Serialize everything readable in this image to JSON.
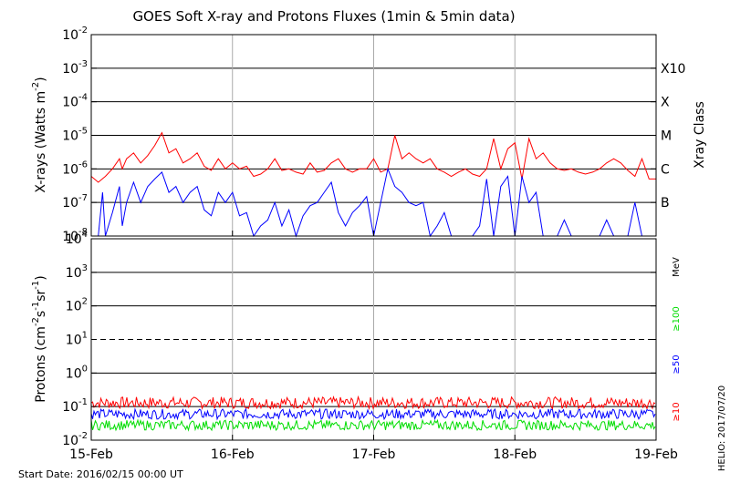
{
  "chart_data": [
    {
      "type": "line",
      "title": "GOES Soft X-ray and Protons Fluxes   (1min & 5min data)",
      "ylabel": {
        "prefix": "X-rays (Watts m",
        "exp": "-2",
        "suffix": ")"
      },
      "yscale": "log",
      "ylim": [
        1e-08,
        0.01
      ],
      "y_ticks": [
        {
          "mant": "10",
          "exp": "-2"
        },
        {
          "mant": "10",
          "exp": "-3"
        },
        {
          "mant": "10",
          "exp": "-4"
        },
        {
          "mant": "10",
          "exp": "-5"
        },
        {
          "mant": "10",
          "exp": "-6"
        },
        {
          "mant": "10",
          "exp": "-7"
        },
        {
          "mant": "10",
          "exp": "-8"
        }
      ],
      "right_axis_label": "Xray Class",
      "classes": [
        "X10",
        "X",
        "M",
        "C",
        "B"
      ],
      "grid": true,
      "series": [
        {
          "color": "#ff0000",
          "x": [
            0,
            0.05,
            0.1,
            0.15,
            0.2,
            0.22,
            0.25,
            0.3,
            0.35,
            0.4,
            0.45,
            0.5,
            0.55,
            0.6,
            0.65,
            0.7,
            0.75,
            0.8,
            0.85,
            0.9,
            0.95,
            1.0,
            1.05,
            1.1,
            1.15,
            1.2,
            1.25,
            1.3,
            1.35,
            1.4,
            1.45,
            1.5,
            1.55,
            1.6,
            1.65,
            1.7,
            1.75,
            1.8,
            1.85,
            1.9,
            1.95,
            2.0,
            2.05,
            2.1,
            2.15,
            2.2,
            2.25,
            2.3,
            2.35,
            2.4,
            2.45,
            2.5,
            2.55,
            2.6,
            2.65,
            2.7,
            2.75,
            2.8,
            2.85,
            2.9,
            2.95,
            3.0,
            3.05,
            3.1,
            3.15,
            3.2,
            3.25,
            3.3,
            3.35,
            3.4,
            3.45,
            3.5,
            3.55,
            3.6,
            3.65,
            3.7,
            3.75,
            3.8,
            3.85,
            3.9,
            3.95,
            4.0
          ],
          "y": [
            6e-07,
            4e-07,
            6e-07,
            1e-06,
            2e-06,
            1e-06,
            2e-06,
            3e-06,
            1.5e-06,
            2.5e-06,
            5e-06,
            1.2e-05,
            3e-06,
            4e-06,
            1.5e-06,
            2e-06,
            3e-06,
            1.2e-06,
            9e-07,
            2e-06,
            1e-06,
            1.5e-06,
            1e-06,
            1.2e-06,
            6e-07,
            7e-07,
            1e-06,
            2e-06,
            9e-07,
            1e-06,
            8e-07,
            7e-07,
            1.5e-06,
            8e-07,
            9e-07,
            1.5e-06,
            2e-06,
            1e-06,
            8e-07,
            1e-06,
            1e-06,
            2e-06,
            8e-07,
            1e-06,
            1e-05,
            2e-06,
            3e-06,
            2e-06,
            1.5e-06,
            2e-06,
            1e-06,
            8e-07,
            6e-07,
            8e-07,
            1e-06,
            7e-07,
            6e-07,
            1e-06,
            8e-06,
            1e-06,
            4e-06,
            6e-06,
            5e-07,
            8e-06,
            2e-06,
            3e-06,
            1.5e-06,
            1e-06,
            9e-07,
            1e-06,
            8e-07,
            7e-07,
            8e-07,
            1e-06,
            1.5e-06,
            2e-06,
            1.5e-06,
            9e-07,
            6e-07,
            2e-06,
            5e-07,
            5e-07
          ]
        },
        {
          "color": "#0000ff",
          "x": [
            0,
            0.05,
            0.08,
            0.1,
            0.15,
            0.2,
            0.22,
            0.25,
            0.3,
            0.35,
            0.4,
            0.45,
            0.5,
            0.55,
            0.6,
            0.65,
            0.7,
            0.75,
            0.8,
            0.85,
            0.9,
            0.95,
            1.0,
            1.05,
            1.1,
            1.15,
            1.2,
            1.25,
            1.3,
            1.35,
            1.4,
            1.45,
            1.5,
            1.55,
            1.6,
            1.65,
            1.7,
            1.75,
            1.8,
            1.85,
            1.9,
            1.95,
            2.0,
            2.05,
            2.1,
            2.15,
            2.2,
            2.25,
            2.3,
            2.35,
            2.4,
            2.45,
            2.5,
            2.55,
            2.6,
            2.65,
            2.7,
            2.75,
            2.8,
            2.85,
            2.9,
            2.95,
            3.0,
            3.05,
            3.1,
            3.15,
            3.2,
            3.25,
            3.3,
            3.35,
            3.4,
            3.45,
            3.5,
            3.55,
            3.6,
            3.65,
            3.7,
            3.75,
            3.8,
            3.85,
            3.9,
            3.95,
            4.0
          ],
          "y": [
            1e-08,
            1e-08,
            2e-07,
            1e-08,
            5e-08,
            3e-07,
            2e-08,
            1e-07,
            4e-07,
            1e-07,
            3e-07,
            5e-07,
            8e-07,
            2e-07,
            3e-07,
            1e-07,
            2e-07,
            3e-07,
            6e-08,
            4e-08,
            2e-07,
            1e-07,
            2e-07,
            4e-08,
            5e-08,
            1e-08,
            2e-08,
            3e-08,
            1e-07,
            2e-08,
            6e-08,
            1e-08,
            4e-08,
            8e-08,
            1e-07,
            2e-07,
            4e-07,
            5e-08,
            2e-08,
            5e-08,
            8e-08,
            1.5e-07,
            1e-08,
            1e-07,
            1e-06,
            3e-07,
            2e-07,
            1e-07,
            8e-08,
            1e-07,
            1e-08,
            2e-08,
            5e-08,
            1e-08,
            1e-08,
            1e-08,
            1e-08,
            2e-08,
            5e-07,
            1e-08,
            3e-07,
            6e-07,
            1e-08,
            6e-07,
            1e-07,
            2e-07,
            1e-08,
            1e-08,
            1e-08,
            3e-08,
            1e-08,
            1e-08,
            1e-08,
            1e-08,
            1e-08,
            3e-08,
            1e-08,
            1e-08,
            1e-08,
            1e-07,
            1e-08,
            1e-08,
            1e-08
          ]
        }
      ]
    },
    {
      "type": "line",
      "ylabel": {
        "prefix": "Protons (cm",
        "e1": "-2",
        "mid1": "s",
        "e2": "-1",
        "mid2": "sr",
        "e3": "-1",
        "suffix": ")"
      },
      "yscale": "log",
      "ylim": [
        0.01,
        10000
      ],
      "y_ticks": [
        {
          "mant": "10",
          "exp": "4"
        },
        {
          "mant": "10",
          "exp": "3"
        },
        {
          "mant": "10",
          "exp": "2"
        },
        {
          "mant": "10",
          "exp": "1"
        },
        {
          "mant": "10",
          "exp": "0"
        },
        {
          "mant": "10",
          "exp": "-1"
        },
        {
          "mant": "10",
          "exp": "-2"
        }
      ],
      "threshold": 10,
      "right_axis_label": "MeV",
      "energy_labels": [
        {
          "text": "≥100",
          "color": "#00dd00"
        },
        {
          "text": "≥50",
          "color": "#0000ff"
        },
        {
          "text": "≥10",
          "color": "#ff0000"
        }
      ],
      "series": [
        {
          "color": "#ff0000",
          "level": 0.13,
          "spread": 0.35
        },
        {
          "color": "#0000ff",
          "level": 0.06,
          "spread": 0.3
        },
        {
          "color": "#00dd00",
          "level": 0.028,
          "spread": 0.3
        }
      ]
    }
  ],
  "x_axis": {
    "tick_labels": [
      "15-Feb",
      "16-Feb",
      "17-Feb",
      "18-Feb",
      "19-Feb"
    ]
  },
  "footer": {
    "start_date": "Start Date: 2016/02/15 00:00 UT",
    "credit": "HELIO: 2017/07/20"
  }
}
